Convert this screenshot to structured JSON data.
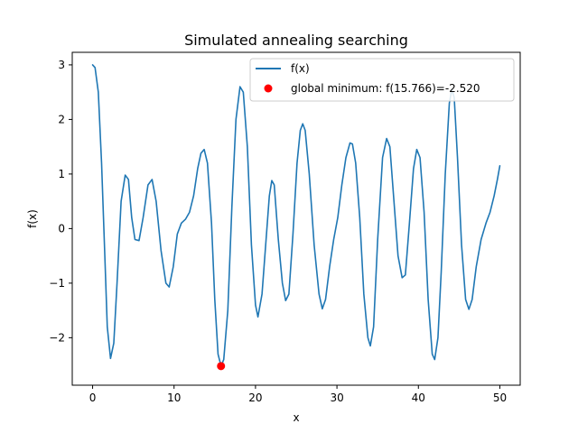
{
  "chart_data": {
    "type": "line",
    "title": "Simulated annealing searching",
    "xlabel": "x",
    "ylabel": "f(x)",
    "xlim": [
      -2.5,
      52.5
    ],
    "ylim": [
      -2.87,
      3.23
    ],
    "xticks": [
      0,
      10,
      20,
      30,
      40,
      50
    ],
    "xtick_labels": [
      "0",
      "10",
      "20",
      "30",
      "40",
      "50"
    ],
    "yticks": [
      -2,
      -1,
      0,
      1,
      2,
      3
    ],
    "ytick_labels": [
      "−2",
      "−1",
      "0",
      "1",
      "2",
      "3"
    ],
    "grid": false,
    "legend_position": "upper-right",
    "series": [
      {
        "name": "f(x)",
        "kind": "line",
        "color": "#1f77b4",
        "points": [
          [
            0,
            3.0
          ],
          [
            0.3,
            2.95
          ],
          [
            0.7,
            2.5
          ],
          [
            1.1,
            1.2
          ],
          [
            1.5,
            -0.5
          ],
          [
            1.8,
            -1.8
          ],
          [
            2.2,
            -2.38
          ],
          [
            2.6,
            -2.1
          ],
          [
            3.0,
            -1.0
          ],
          [
            3.5,
            0.5
          ],
          [
            4.0,
            0.98
          ],
          [
            4.4,
            0.9
          ],
          [
            4.8,
            0.2
          ],
          [
            5.2,
            -0.2
          ],
          [
            5.7,
            -0.22
          ],
          [
            6.2,
            0.2
          ],
          [
            6.8,
            0.8
          ],
          [
            7.3,
            0.9
          ],
          [
            7.8,
            0.5
          ],
          [
            8.4,
            -0.4
          ],
          [
            9.0,
            -1.0
          ],
          [
            9.4,
            -1.07
          ],
          [
            9.9,
            -0.7
          ],
          [
            10.4,
            -0.1
          ],
          [
            10.9,
            0.1
          ],
          [
            11.4,
            0.17
          ],
          [
            11.9,
            0.3
          ],
          [
            12.4,
            0.6
          ],
          [
            12.9,
            1.1
          ],
          [
            13.3,
            1.38
          ],
          [
            13.7,
            1.45
          ],
          [
            14.1,
            1.2
          ],
          [
            14.6,
            0.1
          ],
          [
            15.0,
            -1.3
          ],
          [
            15.4,
            -2.3
          ],
          [
            15.77,
            -2.52
          ],
          [
            16.1,
            -2.4
          ],
          [
            16.6,
            -1.5
          ],
          [
            17.1,
            0.4
          ],
          [
            17.6,
            2.0
          ],
          [
            18.1,
            2.6
          ],
          [
            18.5,
            2.5
          ],
          [
            19.0,
            1.5
          ],
          [
            19.5,
            -0.3
          ],
          [
            20.0,
            -1.4
          ],
          [
            20.3,
            -1.62
          ],
          [
            20.8,
            -1.2
          ],
          [
            21.3,
            -0.2
          ],
          [
            21.7,
            0.6
          ],
          [
            22.0,
            0.88
          ],
          [
            22.3,
            0.8
          ],
          [
            22.8,
            -0.2
          ],
          [
            23.3,
            -1.0
          ],
          [
            23.7,
            -1.32
          ],
          [
            24.1,
            -1.2
          ],
          [
            24.6,
            -0.1
          ],
          [
            25.1,
            1.2
          ],
          [
            25.5,
            1.8
          ],
          [
            25.8,
            1.92
          ],
          [
            26.1,
            1.8
          ],
          [
            26.6,
            1.0
          ],
          [
            27.2,
            -0.3
          ],
          [
            27.8,
            -1.2
          ],
          [
            28.2,
            -1.47
          ],
          [
            28.6,
            -1.3
          ],
          [
            29.1,
            -0.7
          ],
          [
            29.6,
            -0.2
          ],
          [
            30.1,
            0.2
          ],
          [
            30.6,
            0.8
          ],
          [
            31.1,
            1.3
          ],
          [
            31.6,
            1.57
          ],
          [
            31.9,
            1.55
          ],
          [
            32.3,
            1.2
          ],
          [
            32.8,
            0.2
          ],
          [
            33.3,
            -1.2
          ],
          [
            33.8,
            -2.0
          ],
          [
            34.1,
            -2.15
          ],
          [
            34.5,
            -1.8
          ],
          [
            35.0,
            -0.2
          ],
          [
            35.6,
            1.3
          ],
          [
            36.1,
            1.65
          ],
          [
            36.5,
            1.5
          ],
          [
            37.0,
            0.5
          ],
          [
            37.5,
            -0.5
          ],
          [
            38.0,
            -0.9
          ],
          [
            38.4,
            -0.85
          ],
          [
            38.9,
            0.1
          ],
          [
            39.4,
            1.1
          ],
          [
            39.8,
            1.45
          ],
          [
            40.2,
            1.3
          ],
          [
            40.7,
            0.3
          ],
          [
            41.2,
            -1.3
          ],
          [
            41.7,
            -2.3
          ],
          [
            42.0,
            -2.4
          ],
          [
            42.4,
            -2.0
          ],
          [
            42.8,
            -0.8
          ],
          [
            43.3,
            1.0
          ],
          [
            43.8,
            2.3
          ],
          [
            44.1,
            2.55
          ],
          [
            44.4,
            2.4
          ],
          [
            44.8,
            1.3
          ],
          [
            45.3,
            -0.3
          ],
          [
            45.8,
            -1.3
          ],
          [
            46.2,
            -1.48
          ],
          [
            46.6,
            -1.3
          ],
          [
            47.1,
            -0.7
          ],
          [
            47.7,
            -0.2
          ],
          [
            48.3,
            0.1
          ],
          [
            48.8,
            0.3
          ],
          [
            49.3,
            0.6
          ],
          [
            49.7,
            0.9
          ],
          [
            50.0,
            1.15
          ]
        ]
      },
      {
        "name": "global minimum: f(15.766)=-2.520",
        "kind": "scatter",
        "color": "#ff0000",
        "points": [
          [
            15.766,
            -2.52
          ]
        ]
      }
    ]
  }
}
